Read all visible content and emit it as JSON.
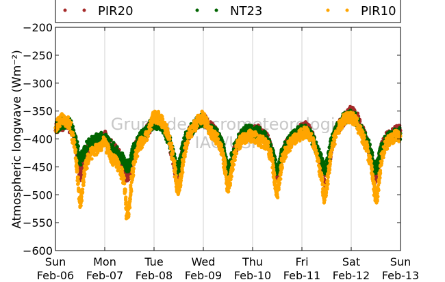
{
  "chart_data": {
    "type": "scatter",
    "ylabel_main": "Atmospheric longwave",
    "ylabel_unit": "(Wm⁻²)",
    "ylim": [
      -600,
      -200
    ],
    "yticks": [
      -200,
      -250,
      -300,
      -350,
      -400,
      -450,
      -500,
      -550,
      -600
    ],
    "xlim": [
      "2011-02-06",
      "2011-02-13"
    ],
    "xtick_labels": [
      {
        "day": "Sun",
        "date": "Feb-06"
      },
      {
        "day": "Mon",
        "date": "Feb-07"
      },
      {
        "day": "Tue",
        "date": "Feb-08"
      },
      {
        "day": "Wed",
        "date": "Feb-09"
      },
      {
        "day": "Thu",
        "date": "Feb-10"
      },
      {
        "day": "Fri",
        "date": "Feb-11"
      },
      {
        "day": "Sat",
        "date": "Feb-12"
      },
      {
        "day": "Sun",
        "date": "Feb-13"
      }
    ],
    "grid": "vertical",
    "legend_position": "top",
    "watermark": [
      "Grupo de Micrometeorologia",
      "IAG/USP"
    ],
    "series": [
      {
        "name": "PIR20",
        "color": "#a52a2a",
        "x": [
          0.0,
          0.1,
          0.2,
          0.3,
          0.4,
          0.45,
          0.5,
          0.55,
          0.6,
          0.7,
          0.8,
          0.9,
          1.0,
          1.1,
          1.2,
          1.3,
          1.4,
          1.45,
          1.5,
          1.55,
          1.6,
          1.7,
          1.8,
          1.9,
          2.0,
          2.1,
          2.2,
          2.3,
          2.4,
          2.45,
          2.5,
          2.55,
          2.6,
          2.7,
          2.8,
          2.9,
          3.0,
          3.1,
          3.2,
          3.3,
          3.4,
          3.45,
          3.5,
          3.55,
          3.6,
          3.7,
          3.8,
          3.9,
          4.0,
          4.1,
          4.2,
          4.3,
          4.4,
          4.45,
          4.5,
          4.55,
          4.6,
          4.7,
          4.8,
          4.9,
          5.0,
          5.1,
          5.2,
          5.3,
          5.4,
          5.45,
          5.5,
          5.55,
          5.6,
          5.7,
          5.8,
          5.9,
          6.0,
          6.1,
          6.2,
          6.3,
          6.4,
          6.45,
          6.5,
          6.55,
          6.6,
          6.7,
          6.8,
          6.9,
          7.0
        ],
        "y": [
          -385,
          -375,
          -372,
          -378,
          -400,
          -430,
          -470,
          -450,
          -430,
          -410,
          -405,
          -400,
          -395,
          -410,
          -420,
          -430,
          -450,
          -470,
          -460,
          -440,
          -420,
          -400,
          -395,
          -380,
          -370,
          -370,
          -378,
          -400,
          -440,
          -470,
          -460,
          -440,
          -420,
          -390,
          -380,
          -370,
          -362,
          -375,
          -385,
          -395,
          -420,
          -450,
          -470,
          -455,
          -430,
          -405,
          -395,
          -385,
          -385,
          -385,
          -395,
          -400,
          -430,
          -455,
          -465,
          -450,
          -430,
          -410,
          -400,
          -390,
          -380,
          -380,
          -395,
          -420,
          -450,
          -475,
          -460,
          -440,
          -410,
          -385,
          -370,
          -360,
          -350,
          -360,
          -380,
          -400,
          -430,
          -460,
          -470,
          -450,
          -420,
          -400,
          -395,
          -388,
          -385
        ]
      },
      {
        "name": "NT23",
        "color": "#006400",
        "x": [
          0.0,
          0.1,
          0.2,
          0.3,
          0.4,
          0.45,
          0.5,
          0.55,
          0.6,
          0.7,
          0.8,
          0.9,
          1.0,
          1.1,
          1.2,
          1.3,
          1.4,
          1.45,
          1.5,
          1.55,
          1.6,
          1.7,
          1.8,
          1.9,
          2.0,
          2.1,
          2.2,
          2.3,
          2.4,
          2.45,
          2.5,
          2.55,
          2.6,
          2.7,
          2.8,
          2.9,
          3.0,
          3.1,
          3.2,
          3.3,
          3.4,
          3.45,
          3.5,
          3.55,
          3.6,
          3.7,
          3.8,
          3.9,
          4.0,
          4.1,
          4.2,
          4.3,
          4.4,
          4.45,
          4.5,
          4.55,
          4.6,
          4.7,
          4.8,
          4.9,
          5.0,
          5.1,
          5.2,
          5.3,
          5.4,
          5.45,
          5.5,
          5.55,
          5.6,
          5.7,
          5.8,
          5.9,
          6.0,
          6.1,
          6.2,
          6.3,
          6.4,
          6.45,
          6.5,
          6.55,
          6.6,
          6.7,
          6.8,
          6.9,
          7.0
        ],
        "y": [
          -380,
          -372,
          -370,
          -375,
          -400,
          -420,
          -440,
          -430,
          -420,
          -408,
          -402,
          -398,
          -400,
          -410,
          -420,
          -430,
          -440,
          -450,
          -445,
          -430,
          -415,
          -400,
          -392,
          -378,
          -372,
          -372,
          -380,
          -400,
          -430,
          -455,
          -450,
          -430,
          -410,
          -388,
          -378,
          -370,
          -365,
          -375,
          -388,
          -395,
          -415,
          -440,
          -455,
          -445,
          -425,
          -402,
          -392,
          -385,
          -387,
          -388,
          -395,
          -400,
          -425,
          -445,
          -455,
          -445,
          -425,
          -408,
          -398,
          -390,
          -385,
          -385,
          -398,
          -418,
          -440,
          -455,
          -448,
          -430,
          -405,
          -382,
          -368,
          -362,
          -358,
          -365,
          -382,
          -400,
          -425,
          -445,
          -455,
          -440,
          -418,
          -402,
          -396,
          -392,
          -390
        ]
      },
      {
        "name": "PIR10",
        "color": "#ffa500",
        "x": [
          0.0,
          0.1,
          0.2,
          0.3,
          0.4,
          0.45,
          0.5,
          0.55,
          0.6,
          0.7,
          0.8,
          0.9,
          1.0,
          1.1,
          1.2,
          1.3,
          1.4,
          1.45,
          1.5,
          1.55,
          1.6,
          1.7,
          1.8,
          1.9,
          2.0,
          2.1,
          2.2,
          2.3,
          2.4,
          2.45,
          2.5,
          2.55,
          2.6,
          2.7,
          2.8,
          2.9,
          3.0,
          3.1,
          3.2,
          3.3,
          3.4,
          3.45,
          3.5,
          3.55,
          3.6,
          3.7,
          3.8,
          3.9,
          4.0,
          4.1,
          4.2,
          4.3,
          4.4,
          4.45,
          4.5,
          4.55,
          4.6,
          4.7,
          4.8,
          4.9,
          5.0,
          5.1,
          5.2,
          5.3,
          5.4,
          5.45,
          5.5,
          5.55,
          5.6,
          5.7,
          5.8,
          5.9,
          6.0,
          6.1,
          6.2,
          6.3,
          6.4,
          6.45,
          6.5,
          6.55,
          6.6,
          6.7,
          6.8,
          6.9,
          7.0
        ],
        "y": [
          -380,
          -365,
          -365,
          -375,
          -420,
          -470,
          -520,
          -490,
          -450,
          -430,
          -420,
          -415,
          -405,
          -430,
          -440,
          -450,
          -480,
          -540,
          -520,
          -470,
          -440,
          -410,
          -405,
          -385,
          -360,
          -362,
          -375,
          -395,
          -440,
          -480,
          -490,
          -470,
          -430,
          -395,
          -380,
          -365,
          -360,
          -380,
          -395,
          -400,
          -430,
          -460,
          -490,
          -470,
          -440,
          -410,
          -400,
          -395,
          -395,
          -400,
          -405,
          -410,
          -440,
          -480,
          -500,
          -470,
          -440,
          -415,
          -405,
          -395,
          -390,
          -388,
          -400,
          -430,
          -470,
          -510,
          -490,
          -455,
          -420,
          -390,
          -370,
          -360,
          -360,
          -370,
          -390,
          -410,
          -445,
          -480,
          -510,
          -490,
          -440,
          -410,
          -400,
          -395,
          -395
        ]
      }
    ]
  }
}
